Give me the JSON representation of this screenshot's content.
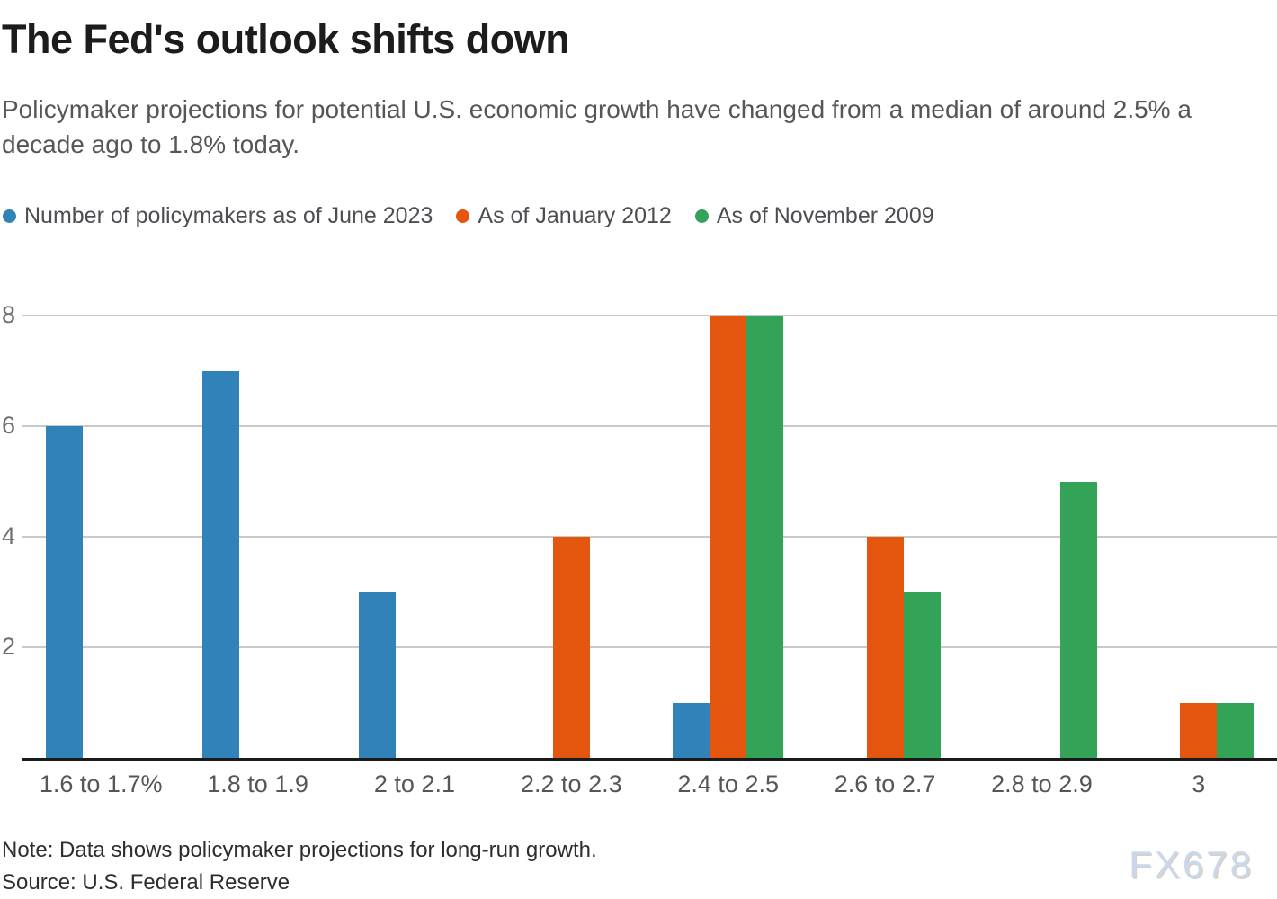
{
  "title": "The Fed's outlook shifts down",
  "subtitle": "Policymaker projections for potential U.S. economic growth have changed from a median of around 2.5% a decade ago to 1.8% today.",
  "note": "Note: Data shows policymaker projections for long-run growth.",
  "source": "Source: U.S. Federal Reserve",
  "watermark": "FX678",
  "colors": {
    "blue": "#3182b9",
    "orange": "#e4560e",
    "green": "#33a457",
    "gridline": "#c9c9c9",
    "axis_line": "#1a1a1a"
  },
  "chart_data": {
    "type": "bar",
    "categories": [
      "1.6 to 1.7%",
      "1.8 to 1.9",
      "2 to 2.1",
      "2.2 to 2.3",
      "2.4 to 2.5",
      "2.6 to 2.7",
      "2.8 to 2.9",
      "3"
    ],
    "series": [
      {
        "name": "Number of policymakers as of June 2023",
        "color": "#3182b9",
        "values": [
          6,
          7,
          3,
          0,
          1,
          0,
          0,
          0
        ]
      },
      {
        "name": "As of January 2012",
        "color": "#e4560e",
        "values": [
          0,
          0,
          0,
          4,
          8,
          4,
          0,
          1
        ]
      },
      {
        "name": "As of November 2009",
        "color": "#33a457",
        "values": [
          0,
          0,
          0,
          0,
          8,
          3,
          5,
          1
        ]
      }
    ],
    "title": "The Fed's outlook shifts down",
    "xlabel": "",
    "ylabel": "",
    "yticks": [
      2,
      4,
      6,
      8
    ],
    "ylim": [
      0,
      8
    ],
    "grid": true,
    "legend_position": "top"
  }
}
